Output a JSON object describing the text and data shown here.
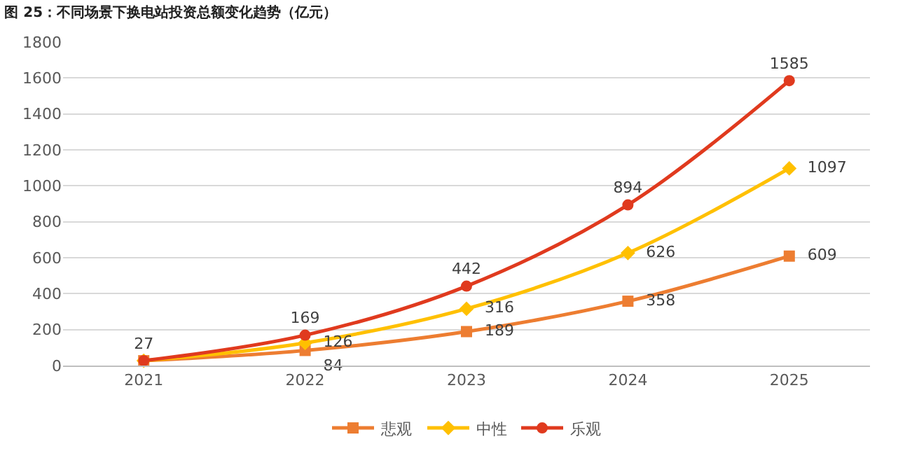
{
  "chart_data": {
    "type": "line",
    "title": "图 25：不同场景下换电站投资总额变化趋势（亿元）",
    "categories": [
      "2021",
      "2022",
      "2023",
      "2024",
      "2025"
    ],
    "series": [
      {
        "name": "悲观",
        "color": "#ed7d31",
        "marker": "square",
        "values": [
          27,
          84,
          189,
          358,
          609
        ],
        "value_labels": [
          null,
          "84",
          "189",
          "358",
          "609"
        ]
      },
      {
        "name": "中性",
        "color": "#ffc000",
        "marker": "diamond",
        "values": [
          27,
          126,
          316,
          626,
          1097
        ],
        "value_labels": [
          null,
          "126",
          "316",
          "626",
          "1097"
        ]
      },
      {
        "name": "乐观",
        "color": "#e03a1e",
        "marker": "circle",
        "values": [
          27,
          169,
          442,
          894,
          1585
        ],
        "value_labels": [
          "27",
          "169",
          "442",
          "894",
          "1585"
        ]
      }
    ],
    "ylim": [
      0,
      1800
    ],
    "yticks": [
      0,
      200,
      400,
      600,
      800,
      1000,
      1200,
      1400,
      1600,
      1800
    ],
    "grid": "y",
    "legend": "bottom"
  }
}
